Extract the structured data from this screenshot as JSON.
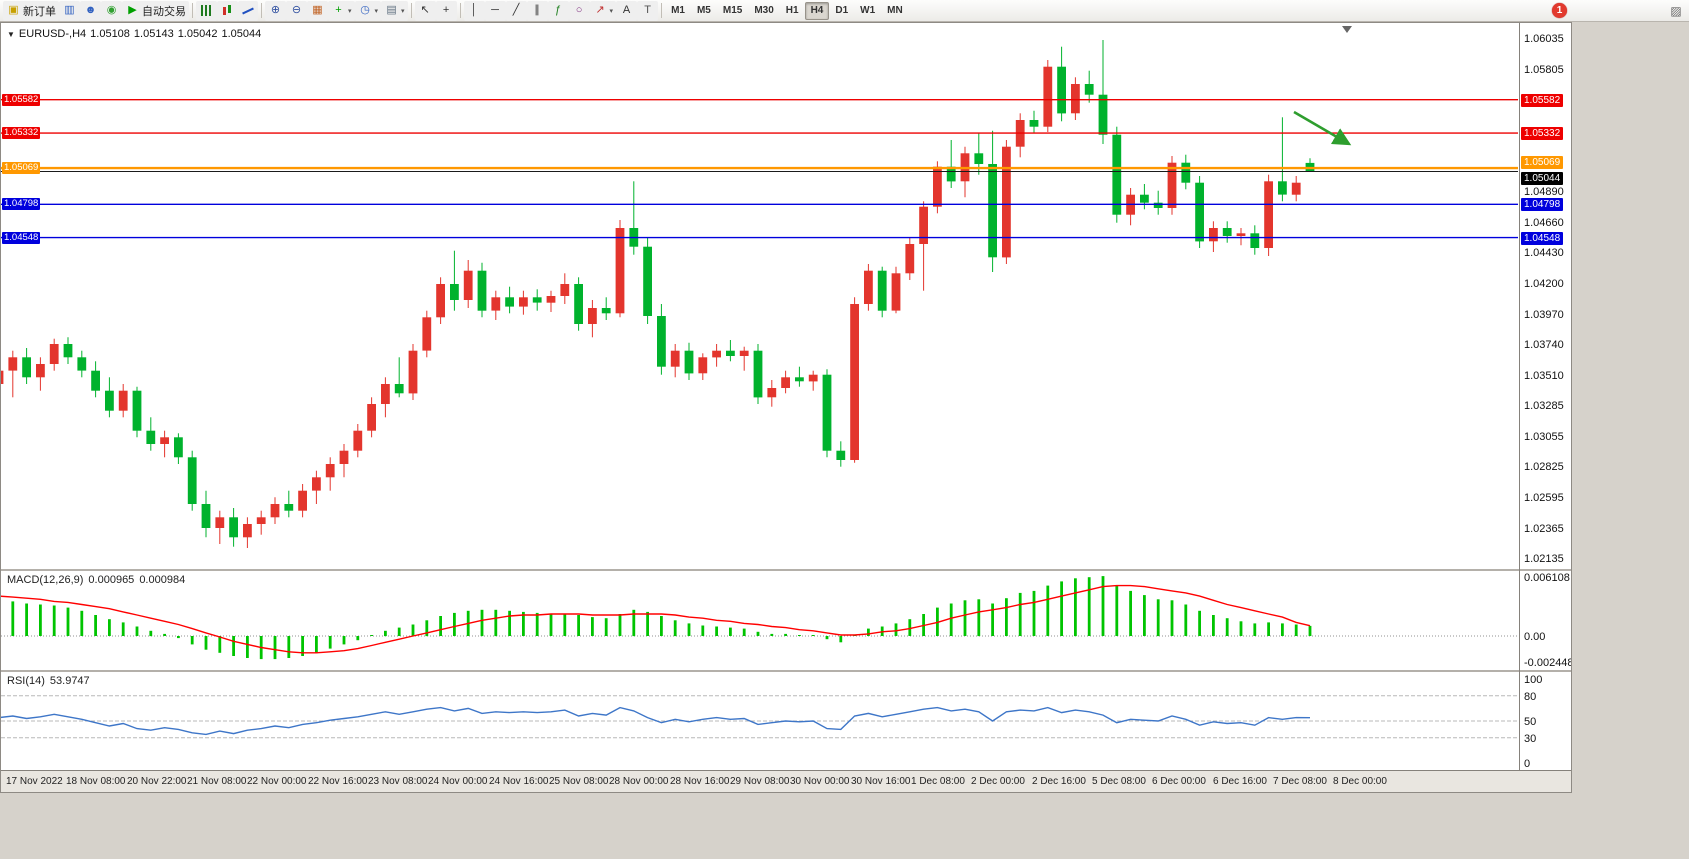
{
  "toolbar": {
    "buttons": [
      {
        "name": "new-order",
        "icon": "new-order",
        "label": "新订单"
      },
      {
        "name": "chart-windows",
        "icon": "chart-windows"
      },
      {
        "name": "profile",
        "icon": "profile"
      },
      {
        "name": "market",
        "icon": "market"
      },
      {
        "name": "autotrading",
        "icon": "autotrading",
        "label": "自动交易"
      },
      {
        "sep": true
      },
      {
        "name": "bar-chart",
        "icon": "bar-chart"
      },
      {
        "name": "candlestick-chart",
        "icon": "candlestick-chart"
      },
      {
        "name": "line-chart",
        "icon": "line-chart"
      },
      {
        "sep": true
      },
      {
        "name": "zoom-in",
        "icon": "zoom-in"
      },
      {
        "name": "zoom-out",
        "icon": "zoom-out"
      },
      {
        "name": "tile-windows",
        "icon": "tile-windows"
      },
      {
        "name": "new-chart",
        "icon": "new-chart",
        "dropdown": true
      },
      {
        "name": "periods",
        "icon": "periods",
        "dropdown": true
      },
      {
        "name": "templates",
        "icon": "templates",
        "dropdown": true
      },
      {
        "sep": true
      },
      {
        "name": "cursor",
        "icon": "cursor"
      },
      {
        "name": "crosshair",
        "icon": "crosshair"
      },
      {
        "sep": true
      },
      {
        "name": "vertical-line",
        "icon": "vertical-line"
      },
      {
        "name": "horizontal-line",
        "icon": "horizontal-line"
      },
      {
        "name": "trendline",
        "icon": "trendline"
      },
      {
        "name": "equidistant-channel",
        "icon": "equidistant-channel"
      },
      {
        "name": "fibonacci",
        "icon": "fibonacci"
      },
      {
        "name": "shapes",
        "icon": "shapes"
      },
      {
        "name": "arrows",
        "icon": "arrows",
        "dropdown": true
      },
      {
        "name": "text",
        "icon": "text"
      },
      {
        "name": "text-label",
        "icon": "text-label"
      },
      {
        "sep": true
      }
    ],
    "timeframes": [
      "M1",
      "M5",
      "M15",
      "M30",
      "H1",
      "H4",
      "D1",
      "W1",
      "MN"
    ],
    "active_timeframe": "H4",
    "notification_count": "1"
  },
  "chart": {
    "symbol_period": "EURUSD-,H4",
    "open": "1.05108",
    "high": "1.05143",
    "low": "1.05042",
    "close": "1.05044"
  },
  "price_axis": {
    "plain_labels": [
      1.06035,
      1.05805,
      1.0489,
      1.0466,
      1.0443,
      1.042,
      1.0397,
      1.0374,
      1.0351,
      1.03285,
      1.03055,
      1.02825,
      1.02595,
      1.02365,
      1.02135
    ]
  },
  "lines": [
    {
      "price": 1.05582,
      "label": "1.05582",
      "color": "#ee0000",
      "width": 1.4
    },
    {
      "price": 1.05332,
      "label": "1.05332",
      "color": "#ee0000",
      "width": 1.4
    },
    {
      "price": 1.05069,
      "label": "1.05069",
      "color": "#ff9800",
      "width": 2.4
    },
    {
      "price": 1.04798,
      "label": "1.04798",
      "color": "#0000dd",
      "width": 1.4
    },
    {
      "price": 1.04548,
      "label": "1.04548",
      "color": "#0000dd",
      "width": 1.4
    }
  ],
  "current_price": {
    "value": 1.05044,
    "label": "1.05044",
    "color": "#1a1a1a"
  },
  "annotation": {
    "arrow_color": "#2e9e2e"
  },
  "time_axis": [
    "17 Nov 2022",
    "18 Nov 08:00",
    "20 Nov 22:00",
    "21 Nov 08:00",
    "22 Nov 00:00",
    "22 Nov 16:00",
    "23 Nov 08:00",
    "24 Nov 00:00",
    "24 Nov 16:00",
    "25 Nov 08:00",
    "28 Nov 00:00",
    "28 Nov 16:00",
    "29 Nov 08:00",
    "30 Nov 00:00",
    "30 Nov 16:00",
    "1 Dec 08:00",
    "2 Dec 00:00",
    "2 Dec 16:00",
    "5 Dec 08:00",
    "6 Dec 00:00",
    "6 Dec 16:00",
    "7 Dec 08:00",
    "8 Dec 00:00"
  ],
  "indicators": {
    "macd": {
      "name_label": "MACD(12,26,9)",
      "value_main": "0.000965",
      "value_signal": "0.000984",
      "axis_labels": [
        {
          "text": "0.006108",
          "value": 0.006108
        },
        {
          "text": "0.00",
          "value": 0
        },
        {
          "text": "-0.002448",
          "value": -0.002448
        }
      ]
    },
    "rsi": {
      "name_label": "RSI(14)",
      "value": "53.9747",
      "axis_labels": [
        100,
        80,
        50,
        30,
        0
      ],
      "levels": [
        80,
        50,
        30
      ]
    }
  },
  "chart_data": {
    "type": "candlestick",
    "symbol": "EURUSD-",
    "timeframe": "H4",
    "up_color": "#e3352d",
    "down_color": "#00b22d",
    "macd_color": "#00c400",
    "signal_color": "#ff0000",
    "rsi_color": "#3e76c8",
    "candles": [
      [
        1.0345,
        1.036,
        1.033,
        1.0355
      ],
      [
        1.0355,
        1.037,
        1.0335,
        1.0365
      ],
      [
        1.0365,
        1.0372,
        1.0345,
        1.035
      ],
      [
        1.035,
        1.0365,
        1.034,
        1.036
      ],
      [
        1.036,
        1.0379,
        1.0355,
        1.0375
      ],
      [
        1.0375,
        1.038,
        1.036,
        1.0365
      ],
      [
        1.0365,
        1.037,
        1.035,
        1.0355
      ],
      [
        1.0355,
        1.0362,
        1.0335,
        1.034
      ],
      [
        1.034,
        1.035,
        1.032,
        1.0325
      ],
      [
        1.0325,
        1.0345,
        1.032,
        1.034
      ],
      [
        1.034,
        1.0343,
        1.0305,
        1.031
      ],
      [
        1.031,
        1.032,
        1.0295,
        1.03
      ],
      [
        1.03,
        1.031,
        1.029,
        1.0305
      ],
      [
        1.0305,
        1.0308,
        1.0285,
        1.029
      ],
      [
        1.029,
        1.0295,
        1.025,
        1.0255
      ],
      [
        1.0255,
        1.0265,
        1.023,
        1.0237
      ],
      [
        1.0237,
        1.025,
        1.0225,
        1.0245
      ],
      [
        1.0245,
        1.0252,
        1.0223,
        1.023
      ],
      [
        1.023,
        1.0245,
        1.0222,
        1.024
      ],
      [
        1.024,
        1.025,
        1.0232,
        1.0245
      ],
      [
        1.0245,
        1.026,
        1.024,
        1.0255
      ],
      [
        1.0255,
        1.0265,
        1.0245,
        1.025
      ],
      [
        1.025,
        1.027,
        1.0245,
        1.0265
      ],
      [
        1.0265,
        1.028,
        1.0255,
        1.0275
      ],
      [
        1.0275,
        1.029,
        1.0265,
        1.0285
      ],
      [
        1.0285,
        1.03,
        1.0275,
        1.0295
      ],
      [
        1.0295,
        1.0315,
        1.029,
        1.031
      ],
      [
        1.031,
        1.0335,
        1.0305,
        1.033
      ],
      [
        1.033,
        1.035,
        1.032,
        1.0345
      ],
      [
        1.0345,
        1.0365,
        1.0335,
        1.0338
      ],
      [
        1.0338,
        1.0375,
        1.0333,
        1.037
      ],
      [
        1.037,
        1.04,
        1.0365,
        1.0395
      ],
      [
        1.0395,
        1.0425,
        1.039,
        1.042
      ],
      [
        1.042,
        1.0445,
        1.04,
        1.0408
      ],
      [
        1.0408,
        1.0438,
        1.0402,
        1.043
      ],
      [
        1.043,
        1.0436,
        1.0395,
        1.04
      ],
      [
        1.04,
        1.0415,
        1.0393,
        1.041
      ],
      [
        1.041,
        1.0418,
        1.0398,
        1.0403
      ],
      [
        1.0403,
        1.0415,
        1.0397,
        1.041
      ],
      [
        1.041,
        1.0416,
        1.04,
        1.0406
      ],
      [
        1.0406,
        1.0415,
        1.0399,
        1.0411
      ],
      [
        1.0411,
        1.0428,
        1.0405,
        1.042
      ],
      [
        1.042,
        1.0425,
        1.0385,
        1.039
      ],
      [
        1.039,
        1.0408,
        1.038,
        1.0402
      ],
      [
        1.0402,
        1.041,
        1.0393,
        1.0398
      ],
      [
        1.0398,
        1.0468,
        1.0395,
        1.0462
      ],
      [
        1.0462,
        1.0497,
        1.0442,
        1.0448
      ],
      [
        1.0448,
        1.0455,
        1.039,
        1.0396
      ],
      [
        1.0396,
        1.0405,
        1.0352,
        1.0358
      ],
      [
        1.0358,
        1.0375,
        1.035,
        1.037
      ],
      [
        1.037,
        1.0376,
        1.0348,
        1.0353
      ],
      [
        1.0353,
        1.0368,
        1.0348,
        1.0365
      ],
      [
        1.0365,
        1.0375,
        1.0358,
        1.037
      ],
      [
        1.037,
        1.0378,
        1.0362,
        1.0366
      ],
      [
        1.0366,
        1.0373,
        1.0355,
        1.037
      ],
      [
        1.037,
        1.0375,
        1.033,
        1.0335
      ],
      [
        1.0335,
        1.0348,
        1.0328,
        1.0342
      ],
      [
        1.0342,
        1.0355,
        1.0338,
        1.035
      ],
      [
        1.035,
        1.0358,
        1.0343,
        1.0347
      ],
      [
        1.0347,
        1.0355,
        1.034,
        1.0352
      ],
      [
        1.0352,
        1.0356,
        1.029,
        1.0295
      ],
      [
        1.0295,
        1.0302,
        1.0283,
        1.0288
      ],
      [
        1.0288,
        1.041,
        1.0286,
        1.0405
      ],
      [
        1.0405,
        1.0435,
        1.04,
        1.043
      ],
      [
        1.043,
        1.0433,
        1.0395,
        1.04
      ],
      [
        1.04,
        1.0433,
        1.0398,
        1.0428
      ],
      [
        1.0428,
        1.0455,
        1.0423,
        1.045
      ],
      [
        1.045,
        1.0482,
        1.0415,
        1.0478
      ],
      [
        1.0478,
        1.0512,
        1.0473,
        1.0508
      ],
      [
        1.0508,
        1.0528,
        1.0492,
        1.0497
      ],
      [
        1.0497,
        1.0523,
        1.0485,
        1.0518
      ],
      [
        1.0518,
        1.0533,
        1.0502,
        1.051
      ],
      [
        1.051,
        1.0535,
        1.0429,
        1.044
      ],
      [
        1.044,
        1.0528,
        1.0435,
        1.0523
      ],
      [
        1.0523,
        1.0548,
        1.0515,
        1.0543
      ],
      [
        1.0543,
        1.055,
        1.0533,
        1.0538
      ],
      [
        1.0538,
        1.0588,
        1.0534,
        1.0583
      ],
      [
        1.0583,
        1.0598,
        1.0542,
        1.0548
      ],
      [
        1.0548,
        1.0575,
        1.0543,
        1.057
      ],
      [
        1.057,
        1.058,
        1.0556,
        1.0562
      ],
      [
        1.0562,
        1.0603,
        1.0525,
        1.0532
      ],
      [
        1.0532,
        1.0538,
        1.0466,
        1.0472
      ],
      [
        1.0472,
        1.0492,
        1.0464,
        1.0487
      ],
      [
        1.0487,
        1.0495,
        1.0476,
        1.0481
      ],
      [
        1.0481,
        1.049,
        1.0472,
        1.0477
      ],
      [
        1.0477,
        1.0516,
        1.0472,
        1.0511
      ],
      [
        1.0511,
        1.0517,
        1.0491,
        1.0496
      ],
      [
        1.0496,
        1.0501,
        1.0447,
        1.0452
      ],
      [
        1.0452,
        1.0467,
        1.0444,
        1.0462
      ],
      [
        1.0462,
        1.0467,
        1.0451,
        1.0456
      ],
      [
        1.0456,
        1.0462,
        1.0449,
        1.0458
      ],
      [
        1.0458,
        1.0464,
        1.0442,
        1.0447
      ],
      [
        1.0447,
        1.0502,
        1.0441,
        1.0497
      ],
      [
        1.0497,
        1.0545,
        1.0482,
        1.0487
      ],
      [
        1.0487,
        1.0501,
        1.0482,
        1.0496
      ],
      [
        1.05108,
        1.05143,
        1.05042,
        1.05044
      ]
    ],
    "macd_histogram": [
      0.0034,
      0.0033,
      0.0031,
      0.003,
      0.0029,
      0.0027,
      0.0024,
      0.002,
      0.0016,
      0.0013,
      0.0009,
      0.0005,
      0.0002,
      -0.0002,
      -0.0008,
      -0.0013,
      -0.0016,
      -0.0019,
      -0.0021,
      -0.0022,
      -0.0022,
      -0.0021,
      -0.0019,
      -0.0016,
      -0.0012,
      -0.0008,
      -0.0004,
      0.0001,
      0.0005,
      0.0008,
      0.0011,
      0.0015,
      0.0019,
      0.0022,
      0.0024,
      0.0025,
      0.0025,
      0.0024,
      0.0023,
      0.0022,
      0.0021,
      0.0021,
      0.002,
      0.0018,
      0.0017,
      0.0021,
      0.0025,
      0.0023,
      0.0019,
      0.0015,
      0.0012,
      0.001,
      0.0009,
      0.0008,
      0.0007,
      0.0004,
      0.0002,
      0.0002,
      0.0001,
      0.0001,
      -0.0003,
      -0.0006,
      0.0001,
      0.0007,
      0.0009,
      0.0012,
      0.0016,
      0.0021,
      0.0027,
      0.0031,
      0.0034,
      0.0035,
      0.0031,
      0.0036,
      0.0041,
      0.0043,
      0.0048,
      0.0052,
      0.0055,
      0.0056,
      0.0057,
      0.0048,
      0.0043,
      0.0039,
      0.0035,
      0.0034,
      0.003,
      0.0024,
      0.002,
      0.0017,
      0.0014,
      0.0012,
      0.0013,
      0.0012,
      0.0011,
      0.000965
    ],
    "macd_signal": [
      0.0038,
      0.0037,
      0.0036,
      0.0035,
      0.0033,
      0.0032,
      0.003,
      0.0028,
      0.0026,
      0.0023,
      0.002,
      0.0017,
      0.0014,
      0.0011,
      0.0007,
      0.0003,
      -0.0001,
      -0.0005,
      -0.0008,
      -0.0011,
      -0.0013,
      -0.0015,
      -0.0016,
      -0.0016,
      -0.0015,
      -0.0014,
      -0.0012,
      -0.0009,
      -0.0006,
      -0.0003,
      0.0,
      0.0003,
      0.0006,
      0.0009,
      0.0012,
      0.0015,
      0.0017,
      0.0019,
      0.002,
      0.002,
      0.0021,
      0.0021,
      0.0021,
      0.002,
      0.002,
      0.002,
      0.0021,
      0.0021,
      0.0021,
      0.002,
      0.0018,
      0.0017,
      0.0015,
      0.0014,
      0.0012,
      0.0011,
      0.0009,
      0.0008,
      0.0006,
      0.0005,
      0.0003,
      0.0001,
      0.0001,
      0.0002,
      0.0004,
      0.0005,
      0.0007,
      0.001,
      0.0013,
      0.0017,
      0.002,
      0.0023,
      0.0025,
      0.0027,
      0.003,
      0.0032,
      0.0035,
      0.0038,
      0.0041,
      0.0044,
      0.0047,
      0.0048,
      0.0048,
      0.0047,
      0.0045,
      0.0043,
      0.0041,
      0.0038,
      0.0034,
      0.003,
      0.0027,
      0.0024,
      0.0021,
      0.0018,
      0.0013,
      0.000984
    ],
    "rsi_values": [
      54,
      56,
      53,
      55,
      58,
      55,
      52,
      48,
      44,
      47,
      41,
      39,
      42,
      40,
      36,
      34,
      38,
      35,
      39,
      41,
      44,
      42,
      46,
      48,
      51,
      53,
      55,
      58,
      61,
      58,
      61,
      64,
      66,
      62,
      65,
      59,
      61,
      60,
      61,
      60,
      61,
      63,
      56,
      59,
      57,
      66,
      62,
      54,
      48,
      52,
      49,
      52,
      54,
      52,
      53,
      46,
      48,
      50,
      49,
      50,
      41,
      40,
      56,
      59,
      55,
      58,
      61,
      64,
      66,
      62,
      64,
      61,
      50,
      61,
      63,
      62,
      66,
      60,
      63,
      61,
      57,
      48,
      52,
      51,
      50,
      56,
      52,
      45,
      49,
      47,
      48,
      45,
      54,
      52,
      54,
      53.97
    ]
  }
}
